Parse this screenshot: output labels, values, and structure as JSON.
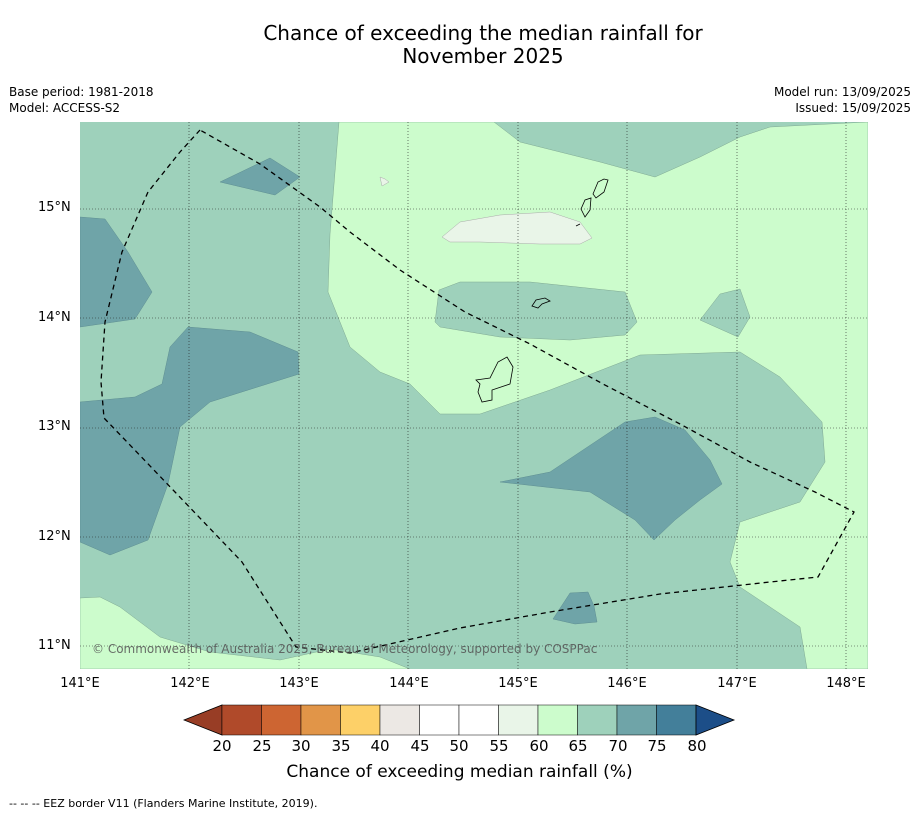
{
  "title_line1": "Chance of exceeding the median rainfall for",
  "title_line2": "November 2025",
  "base_period": "Base period: 1981-2018",
  "model": "Model: ACCESS-S2",
  "model_run": "Model run: 13/09/2025",
  "issued": "Issued: 15/09/2025",
  "copyright": "© Commonwealth of Australia 2025, Bureau of Meteorology, supported by COSPPac",
  "footnote": "--  --  -- EEZ border V11 (Flanders Marine Institute, 2019).",
  "x_ticks": [
    "141°E",
    "142°E",
    "143°E",
    "144°E",
    "145°E",
    "146°E",
    "147°E",
    "148°E"
  ],
  "y_ticks": [
    "15°N",
    "14°N",
    "13°N",
    "12°N",
    "11°N"
  ],
  "colorbar": {
    "title": "Chance of exceeding median rainfall (%)",
    "labels": [
      "20",
      "25",
      "30",
      "35",
      "40",
      "45",
      "50",
      "55",
      "60",
      "65",
      "70",
      "75",
      "80"
    ],
    "colors": [
      "#b04a2a",
      "#cd6532",
      "#e19548",
      "#fdd068",
      "#ece8e4",
      "#ffffff",
      "#ffffff",
      "#e9f5e8",
      "#ccfccc",
      "#9ed1bb",
      "#6fa4a8",
      "#437f9a"
    ],
    "under_color": "#983d25",
    "over_color": "#1c4e88"
  },
  "map_colors": {
    "c55": "#e9f5e8",
    "c60": "#ccfccc",
    "c65": "#9ed1bb",
    "c70": "#6fa4a8"
  }
}
